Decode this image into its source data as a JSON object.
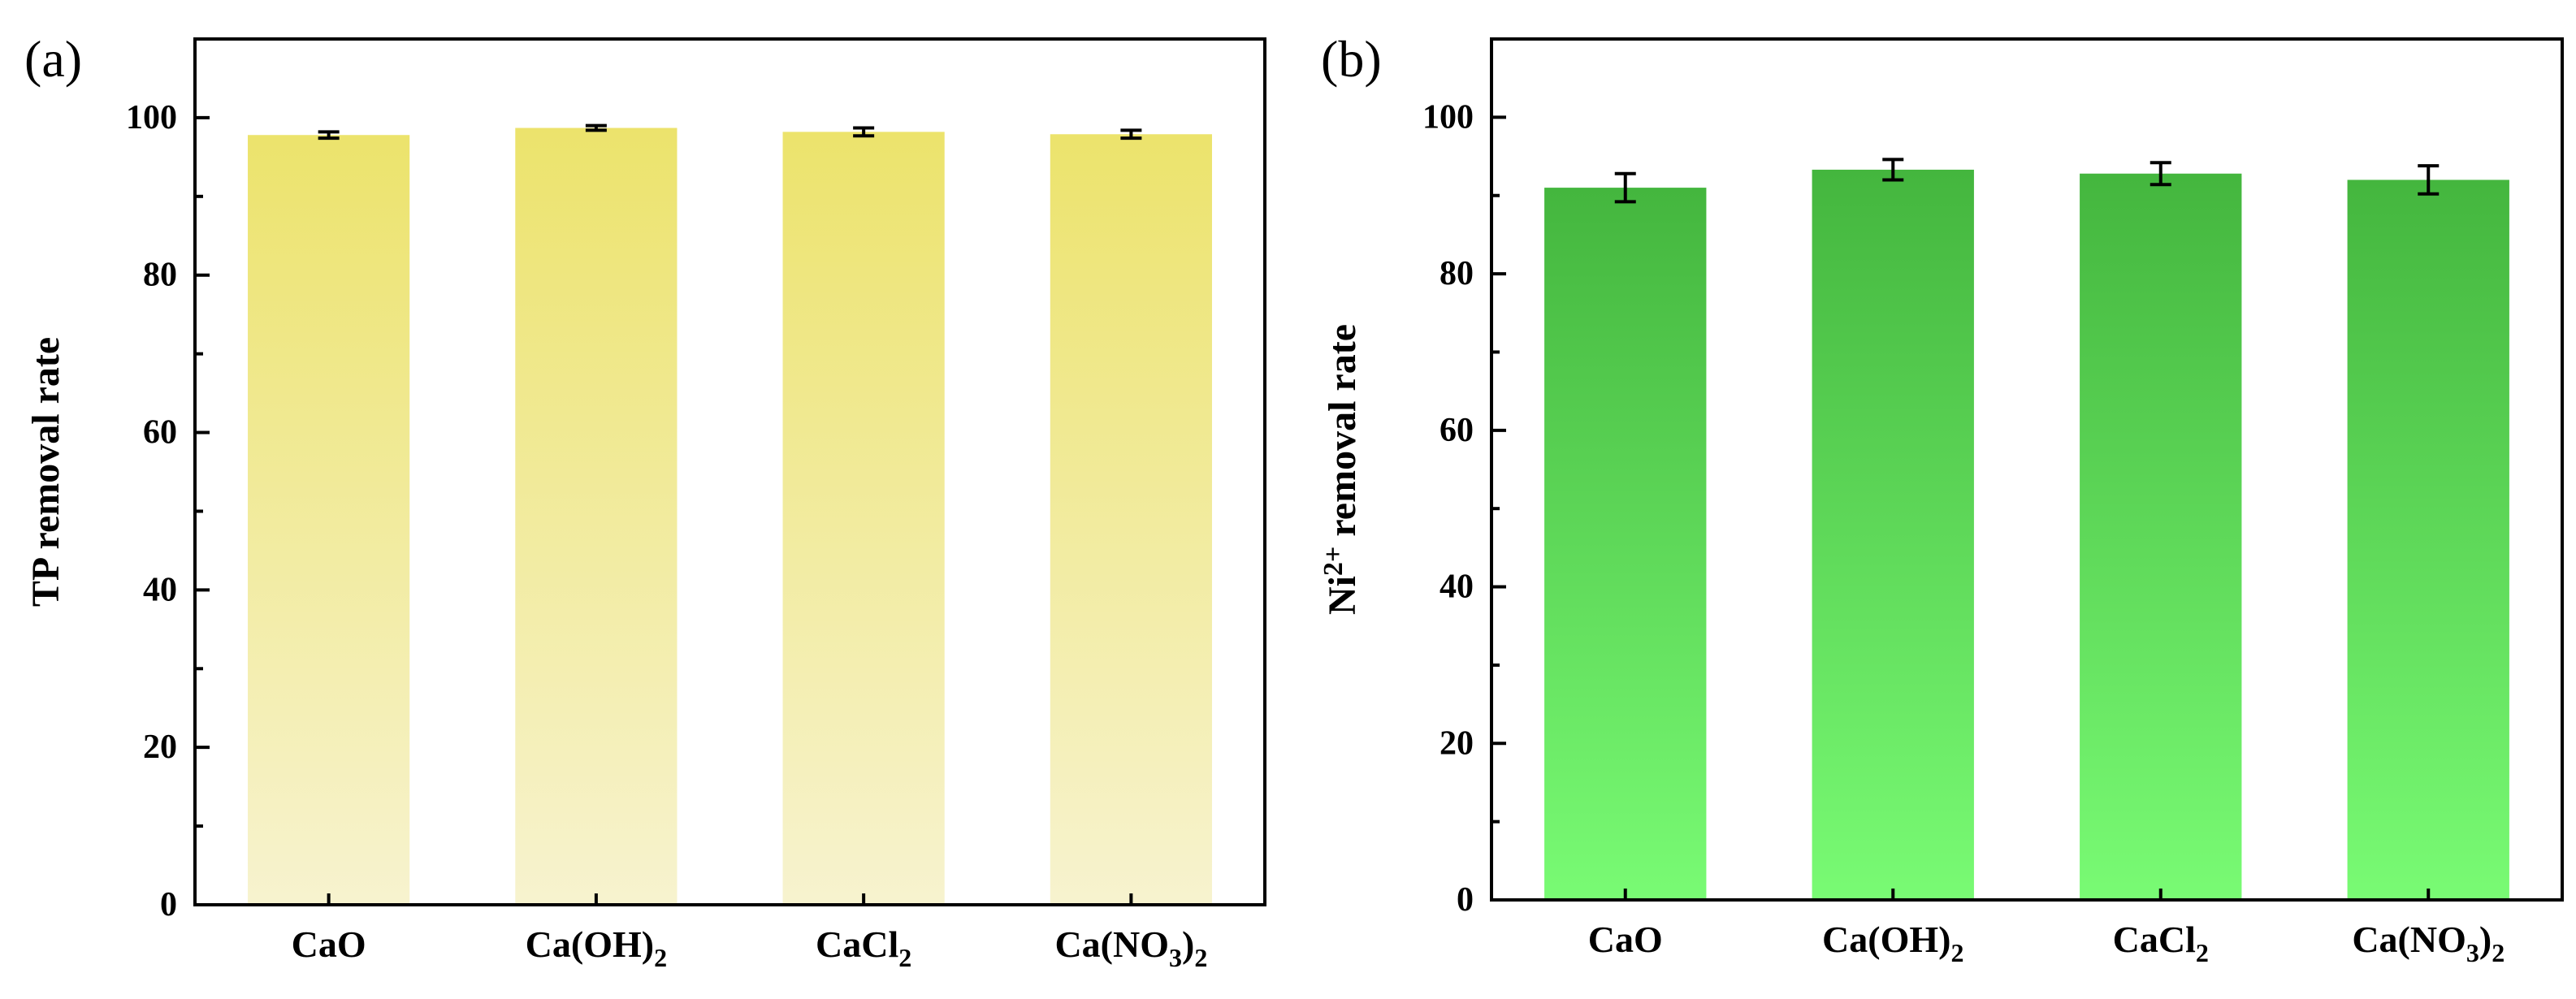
{
  "chart_data": [
    {
      "type": "bar",
      "panel_label": "(a)",
      "categories": [
        "CaO",
        "Ca(OH)2",
        "CaCl2",
        "Ca(NO3)2"
      ],
      "category_labels": [
        {
          "base": "CaO",
          "sub": "",
          "tail": "",
          "sub2": ""
        },
        {
          "base": "Ca(OH)",
          "sub": "2",
          "tail": "",
          "sub2": ""
        },
        {
          "base": "CaCl",
          "sub": "2",
          "tail": "",
          "sub2": ""
        },
        {
          "base": "Ca(NO",
          "sub": "3",
          "tail": ")",
          "sub2": "2"
        }
      ],
      "values": [
        97.8,
        98.7,
        98.2,
        97.9
      ],
      "errors": [
        0.4,
        0.3,
        0.5,
        0.5
      ],
      "ylabel": "TP removal rate",
      "ylabel_base": "TP removal rate",
      "ylabel_sup": "",
      "ylabel_tail": "",
      "ylim": [
        0,
        110
      ],
      "yticks": [
        0,
        20,
        40,
        60,
        80,
        100
      ],
      "bar_color_top": "#ece36c",
      "bar_color_bottom": "#f7f3cf"
    },
    {
      "type": "bar",
      "panel_label": "(b)",
      "categories": [
        "CaO",
        "Ca(OH)2",
        "CaCl2",
        "Ca(NO3)2"
      ],
      "category_labels": [
        {
          "base": "CaO",
          "sub": "",
          "tail": "",
          "sub2": ""
        },
        {
          "base": "Ca(OH)",
          "sub": "2",
          "tail": "",
          "sub2": ""
        },
        {
          "base": "CaCl",
          "sub": "2",
          "tail": "",
          "sub2": ""
        },
        {
          "base": "Ca(NO",
          "sub": "3",
          "tail": ")",
          "sub2": "2"
        }
      ],
      "values": [
        91.0,
        93.3,
        92.8,
        92.0
      ],
      "errors": [
        1.8,
        1.3,
        1.4,
        1.8
      ],
      "ylabel": "Ni2+ removal rate",
      "ylabel_base": "Ni",
      "ylabel_sup": "2+",
      "ylabel_tail": " removal rate",
      "ylim": [
        0,
        110
      ],
      "yticks": [
        0,
        20,
        40,
        60,
        80,
        100
      ],
      "bar_color_top": "#44b63e",
      "bar_color_bottom": "#79fb74"
    }
  ]
}
